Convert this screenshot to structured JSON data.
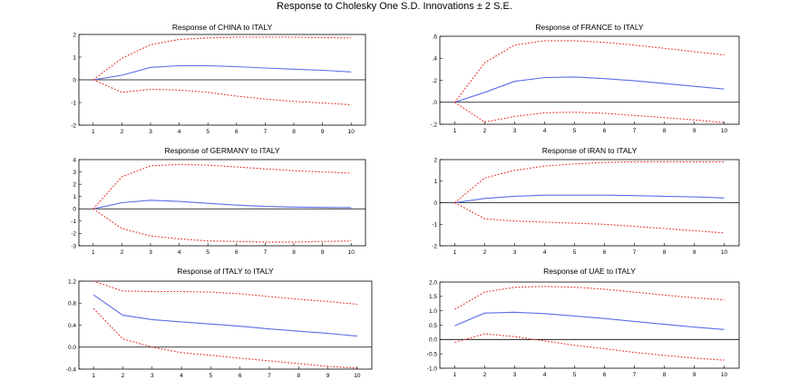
{
  "figure": {
    "title": "Response to Cholesky One S.D. Innovations ± 2 S.E."
  },
  "colors": {
    "response": "#5b6ee8",
    "confidence_band": "#e8332e",
    "axes": "#000000"
  },
  "chart_data": [
    {
      "type": "line",
      "title": "Response of CHINA to ITALY",
      "x": [
        1,
        2,
        3,
        4,
        5,
        6,
        7,
        8,
        9,
        10
      ],
      "xlim": [
        0.5,
        10.5
      ],
      "ylim": [
        -2,
        2
      ],
      "yticks": [
        -2,
        -1,
        0,
        1,
        2
      ],
      "ytick_labels": [
        "-2",
        "-1",
        "0",
        "1",
        "2"
      ],
      "series": [
        {
          "role": "response",
          "values": [
            0,
            0.2,
            0.55,
            0.62,
            0.62,
            0.58,
            0.52,
            0.47,
            0.42,
            0.35
          ]
        },
        {
          "role": "upper",
          "values": [
            0,
            0.95,
            1.55,
            1.78,
            1.85,
            1.88,
            1.88,
            1.88,
            1.86,
            1.85
          ]
        },
        {
          "role": "lower",
          "values": [
            0,
            -0.55,
            -0.42,
            -0.45,
            -0.55,
            -0.72,
            -0.85,
            -0.95,
            -1.02,
            -1.1
          ]
        }
      ]
    },
    {
      "type": "line",
      "title": "Response of FRANCE to ITALY",
      "x": [
        1,
        2,
        3,
        4,
        5,
        6,
        7,
        8,
        9,
        10
      ],
      "xlim": [
        0.5,
        10.5
      ],
      "ylim": [
        -0.2,
        0.6
      ],
      "yticks": [
        -0.2,
        0,
        0.2,
        0.4,
        0.6
      ],
      "ytick_labels": [
        "-.2",
        ".0",
        ".2",
        ".4",
        ".6"
      ],
      "series": [
        {
          "role": "response",
          "values": [
            0,
            0.09,
            0.19,
            0.225,
            0.23,
            0.215,
            0.195,
            0.17,
            0.145,
            0.12
          ]
        },
        {
          "role": "upper",
          "values": [
            0,
            0.36,
            0.52,
            0.56,
            0.56,
            0.545,
            0.52,
            0.49,
            0.46,
            0.43
          ]
        },
        {
          "role": "lower",
          "values": [
            0,
            -0.18,
            -0.13,
            -0.095,
            -0.09,
            -0.1,
            -0.12,
            -0.14,
            -0.16,
            -0.185
          ]
        }
      ]
    },
    {
      "type": "line",
      "title": "Response of GERMANY to ITALY",
      "x": [
        1,
        2,
        3,
        4,
        5,
        6,
        7,
        8,
        9,
        10
      ],
      "xlim": [
        0.5,
        10.5
      ],
      "ylim": [
        -3,
        4
      ],
      "yticks": [
        -3,
        -2,
        -1,
        0,
        1,
        2,
        3,
        4
      ],
      "ytick_labels": [
        "-3",
        "-2",
        "-1",
        "0",
        "1",
        "2",
        "3",
        "4"
      ],
      "series": [
        {
          "role": "response",
          "values": [
            0,
            0.5,
            0.7,
            0.6,
            0.45,
            0.3,
            0.2,
            0.15,
            0.12,
            0.1
          ]
        },
        {
          "role": "upper",
          "values": [
            0,
            2.6,
            3.5,
            3.6,
            3.55,
            3.4,
            3.25,
            3.1,
            3.0,
            2.9
          ]
        },
        {
          "role": "lower",
          "values": [
            0,
            -1.6,
            -2.2,
            -2.45,
            -2.6,
            -2.65,
            -2.7,
            -2.7,
            -2.65,
            -2.6
          ]
        }
      ]
    },
    {
      "type": "line",
      "title": "Response of IRAN to ITALY",
      "x": [
        1,
        2,
        3,
        4,
        5,
        6,
        7,
        8,
        9,
        10
      ],
      "xlim": [
        0.5,
        10.5
      ],
      "ylim": [
        -2,
        2
      ],
      "yticks": [
        -2,
        -1,
        0,
        1,
        2
      ],
      "ytick_labels": [
        "-2",
        "-1",
        "0",
        "1",
        "2"
      ],
      "series": [
        {
          "role": "response",
          "values": [
            0,
            0.2,
            0.3,
            0.35,
            0.35,
            0.35,
            0.33,
            0.3,
            0.27,
            0.22
          ]
        },
        {
          "role": "upper",
          "values": [
            0,
            1.15,
            1.5,
            1.7,
            1.8,
            1.87,
            1.9,
            1.9,
            1.9,
            1.9
          ]
        },
        {
          "role": "lower",
          "values": [
            0,
            -0.75,
            -0.85,
            -0.9,
            -0.95,
            -1.0,
            -1.1,
            -1.2,
            -1.3,
            -1.4
          ]
        }
      ]
    },
    {
      "type": "line",
      "title": "Response of ITALY to ITALY",
      "x": [
        1,
        2,
        3,
        4,
        5,
        6,
        7,
        8,
        9,
        10
      ],
      "xlim": [
        0.5,
        10.5
      ],
      "ylim": [
        -0.4,
        1.2
      ],
      "yticks": [
        -0.4,
        0,
        0.4,
        0.8,
        1.2
      ],
      "ytick_labels": [
        "-0.4",
        "0.0",
        "0.4",
        "0.8",
        "1.2"
      ],
      "series": [
        {
          "role": "response",
          "values": [
            0.95,
            0.58,
            0.5,
            0.46,
            0.42,
            0.38,
            0.33,
            0.29,
            0.25,
            0.2
          ]
        },
        {
          "role": "upper",
          "values": [
            1.2,
            1.02,
            1.01,
            1.01,
            1.0,
            0.97,
            0.92,
            0.87,
            0.83,
            0.78
          ]
        },
        {
          "role": "lower",
          "values": [
            0.7,
            0.15,
            0.0,
            -0.1,
            -0.15,
            -0.2,
            -0.25,
            -0.3,
            -0.35,
            -0.38
          ]
        }
      ]
    },
    {
      "type": "line",
      "title": "Response of UAE to ITALY",
      "x": [
        1,
        2,
        3,
        4,
        5,
        6,
        7,
        8,
        9,
        10
      ],
      "xlim": [
        0.5,
        10.5
      ],
      "ylim": [
        -1,
        2
      ],
      "yticks": [
        -1,
        -0.5,
        0,
        0.5,
        1,
        1.5,
        2
      ],
      "ytick_labels": [
        "-1.0",
        "-0.5",
        "0.0",
        "0.5",
        "1.0",
        "1.5",
        "2.0"
      ],
      "series": [
        {
          "role": "response",
          "values": [
            0.48,
            0.92,
            0.95,
            0.9,
            0.82,
            0.73,
            0.63,
            0.53,
            0.43,
            0.35
          ]
        },
        {
          "role": "upper",
          "values": [
            1.05,
            1.65,
            1.82,
            1.85,
            1.82,
            1.75,
            1.65,
            1.55,
            1.45,
            1.38
          ]
        },
        {
          "role": "lower",
          "values": [
            -0.1,
            0.2,
            0.1,
            -0.05,
            -0.2,
            -0.32,
            -0.45,
            -0.55,
            -0.65,
            -0.72
          ]
        }
      ]
    }
  ]
}
